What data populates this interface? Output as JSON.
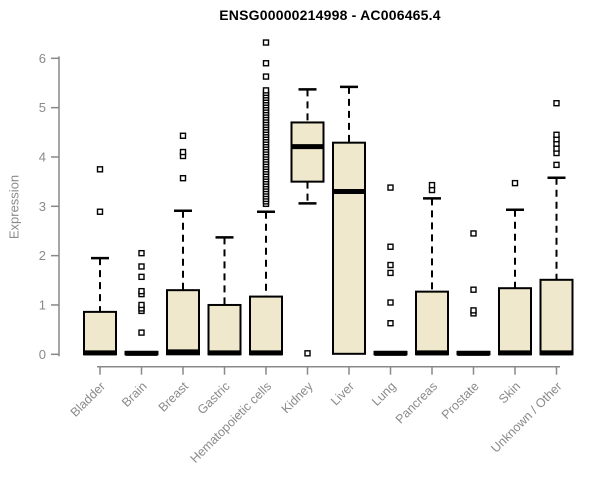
{
  "window": {
    "background": "#ffffff"
  },
  "chart_data": {
    "type": "boxplot",
    "title": "ENSG00000214998 - AC006465.4",
    "ylabel": "Expression",
    "xlabel": "",
    "ylim": [
      0,
      6.4
    ],
    "yticks": [
      0,
      1,
      2,
      3,
      4,
      5,
      6
    ],
    "grid": false,
    "legend": "none",
    "colors": {
      "box_fill": "#EFE8CC",
      "box_border": "#000000",
      "median": "#000000",
      "whisker": "#000000",
      "outlier_stroke": "#000000",
      "outlier_fill": "#ffffff",
      "axis_line": "#888888",
      "tick_label": "#8a8a8a",
      "title": "#000000"
    },
    "categories": [
      "Bladder",
      "Brain",
      "Breast",
      "Gastric",
      "Hematopoietic cells",
      "Kidney",
      "Liver",
      "Lung",
      "Pancreas",
      "Prostate",
      "Skin",
      "Unknown / Other"
    ],
    "series": [
      {
        "label": "Bladder",
        "whisker_low": 0,
        "q1": 0,
        "median": 0.03,
        "q3": 0.86,
        "whisker_high": 1.95,
        "outliers": [
          2.89,
          3.75
        ]
      },
      {
        "label": "Brain",
        "whisker_low": 0,
        "q1": 0,
        "median": 0.02,
        "q3": 0.05,
        "whisker_high": 0.05,
        "outliers": [
          0.44,
          0.88,
          0.93,
          1.0,
          1.22,
          1.28,
          1.57,
          1.78,
          2.05
        ]
      },
      {
        "label": "Breast",
        "whisker_low": 0,
        "q1": 0,
        "median": 0.05,
        "q3": 1.3,
        "whisker_high": 2.91,
        "outliers": [
          3.57,
          4.02,
          4.1,
          4.43
        ]
      },
      {
        "label": "Gastric",
        "whisker_low": 0,
        "q1": 0,
        "median": 0.03,
        "q3": 1.0,
        "whisker_high": 2.37,
        "outliers": []
      },
      {
        "label": "Hematopoietic cells",
        "whisker_low": 0,
        "q1": 0,
        "median": 0.03,
        "q3": 1.17,
        "whisker_high": 2.89,
        "outliers": [
          3.05,
          3.1,
          3.15,
          3.2,
          3.25,
          3.3,
          3.35,
          3.4,
          3.45,
          3.5,
          3.55,
          3.6,
          3.65,
          3.7,
          3.75,
          3.8,
          3.85,
          3.9,
          3.95,
          4.0,
          4.05,
          4.1,
          4.15,
          4.2,
          4.25,
          4.3,
          4.35,
          4.4,
          4.45,
          4.5,
          4.55,
          4.6,
          4.65,
          4.7,
          4.75,
          4.8,
          4.85,
          4.9,
          4.95,
          5.0,
          5.05,
          5.1,
          5.15,
          5.2,
          5.25,
          5.3,
          5.35,
          5.63,
          5.9,
          6.32
        ]
      },
      {
        "label": "Kidney",
        "whisker_low": 3.06,
        "q1": 3.5,
        "median": 4.21,
        "q3": 4.7,
        "whisker_high": 5.37,
        "outliers": [
          0.02
        ]
      },
      {
        "label": "Liver",
        "whisker_low": 0,
        "q1": 0.01,
        "median": 3.3,
        "q3": 4.29,
        "whisker_high": 5.42,
        "outliers": []
      },
      {
        "label": "Lung",
        "whisker_low": 0,
        "q1": 0,
        "median": 0.02,
        "q3": 0.05,
        "whisker_high": 0.05,
        "outliers": [
          0.63,
          1.05,
          1.65,
          1.81,
          2.18,
          3.38
        ]
      },
      {
        "label": "Pancreas",
        "whisker_low": 0,
        "q1": 0,
        "median": 0.03,
        "q3": 1.27,
        "whisker_high": 3.16,
        "outliers": [
          3.33,
          3.43
        ]
      },
      {
        "label": "Prostate",
        "whisker_low": 0,
        "q1": 0,
        "median": 0.02,
        "q3": 0.05,
        "whisker_high": 0.05,
        "outliers": [
          0.83,
          0.89,
          1.31,
          2.45
        ]
      },
      {
        "label": "Skin",
        "whisker_low": 0,
        "q1": 0,
        "median": 0.03,
        "q3": 1.34,
        "whisker_high": 2.93,
        "outliers": [
          3.47
        ]
      },
      {
        "label": "Unknown / Other",
        "whisker_low": 0,
        "q1": 0,
        "median": 0.03,
        "q3": 1.51,
        "whisker_high": 3.58,
        "outliers": [
          3.84,
          4.08,
          4.17,
          4.27,
          4.36,
          4.45,
          5.09
        ]
      }
    ]
  }
}
